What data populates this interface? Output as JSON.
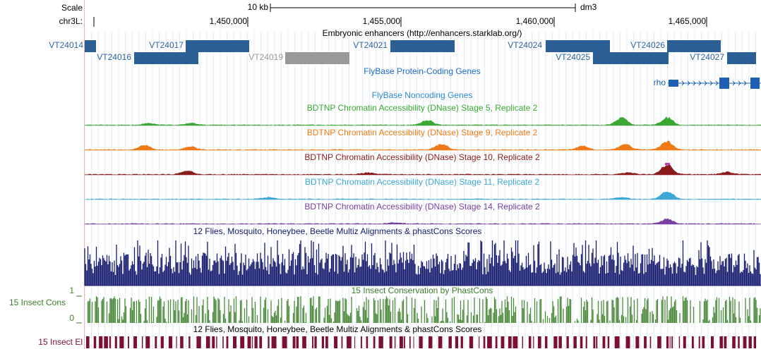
{
  "ruler": {
    "scale": "Scale",
    "chrom": "chr3L:",
    "span": "10 kb",
    "assembly": "dm3",
    "positions": [
      "1,450,000",
      "1,455,000",
      "1,460,000",
      "1,465,000"
    ]
  },
  "enhancers": {
    "title": "Embryonic enhancers (http://enhancers.starklab.org/)",
    "features": [
      "VT24014",
      "VT24016",
      "VT24017",
      "VT24019",
      "VT24021",
      "VT24024",
      "VT24025",
      "VT24026",
      "VT24027"
    ]
  },
  "protein_genes": {
    "title": "FlyBase Protein-Coding Genes",
    "genes": [
      "rho"
    ]
  },
  "noncoding_genes": {
    "title": "FlyBase Noncoding Genes"
  },
  "dnase": [
    "BDTNP Chromatin Accessibility (DNase) Stage 5, Replicate 2",
    "BDTNP Chromatin Accessibility (DNase) Stage 9, Replicate 2",
    "BDTNP Chromatin Accessibility (DNase) Stage 10, Replicate 2",
    "BDTNP Chromatin Accessibility (DNase) Stage 11, Replicate 2",
    "BDTNP Chromatin Accessibility (DNase) Stage 14, Replicate 2"
  ],
  "multiz": {
    "title": "12 Flies, Mosquito, Honeybee, Beetle Multiz Alignments & phastCons Scores"
  },
  "phastcons": {
    "label": "15 Insect Cons",
    "title": "15 Insect Conservation by PhastCons",
    "axis_max": 1,
    "axis_min": 0
  },
  "elements": {
    "label": "15 Insect El",
    "title": "12 Flies, Mosquito, Honeybee, Beetle Multiz Alignments & phastCons Scores"
  }
}
